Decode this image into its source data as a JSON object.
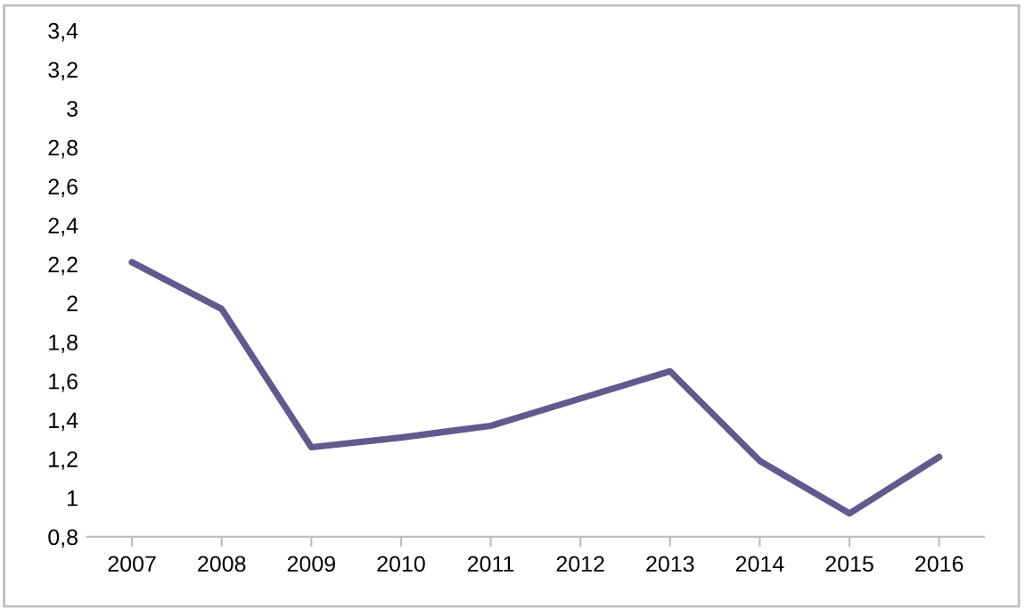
{
  "chart_data": {
    "type": "line",
    "categories": [
      "2007",
      "2008",
      "2009",
      "2010",
      "2011",
      "2012",
      "2013",
      "2014",
      "2015",
      "2016"
    ],
    "series": [
      {
        "color": "#605a8e",
        "values": [
          2.21,
          1.97,
          1.26,
          1.31,
          1.37,
          1.51,
          1.65,
          1.19,
          0.92,
          1.21
        ]
      }
    ],
    "ylim": [
      0.8,
      3.4
    ],
    "yticks": [
      {
        "value": 0.8,
        "label": "0,8"
      },
      {
        "value": 1,
        "label": "1"
      },
      {
        "value": 1.2,
        "label": "1,2"
      },
      {
        "value": 1.4,
        "label": "1,4"
      },
      {
        "value": 1.6,
        "label": "1,6"
      },
      {
        "value": 1.8,
        "label": "1,8"
      },
      {
        "value": 2,
        "label": "2"
      },
      {
        "value": 2.2,
        "label": "2,2"
      },
      {
        "value": 2.4,
        "label": "2,4"
      },
      {
        "value": 2.6,
        "label": "2,6"
      },
      {
        "value": 2.8,
        "label": "2,8"
      },
      {
        "value": 3,
        "label": "3"
      },
      {
        "value": 3.2,
        "label": "3,2"
      },
      {
        "value": 3.4,
        "label": "3,4"
      }
    ],
    "grid": false,
    "marker": "none",
    "line_style": "solid"
  }
}
